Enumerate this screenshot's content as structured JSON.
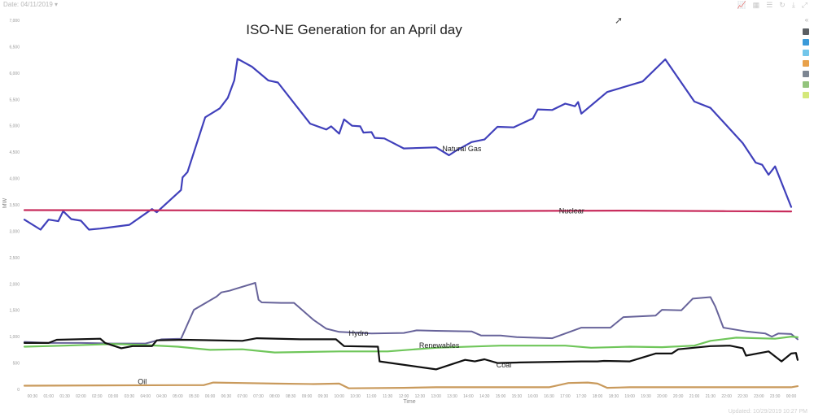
{
  "header": {
    "date_label": "Date: 04/11/2019",
    "toolbar_icons": [
      "line-chart-icon",
      "table-icon",
      "stack-icon",
      "refresh-icon",
      "download-icon",
      "expand-icon"
    ]
  },
  "footer": {
    "updated": "Updated: 10/29/2019 10:27 PM"
  },
  "legend": {
    "collapse_glyph": "«",
    "colors": [
      "#5a5e63",
      "#3a9ad9",
      "#73c6ea",
      "#e8a14a",
      "#7d8692",
      "#93c47d",
      "#d4e87a"
    ]
  },
  "chart_data": {
    "type": "line",
    "title": "ISO-NE Generation for an April day",
    "xlabel": "Time",
    "ylabel": "MW",
    "ylim": [
      0,
      7000
    ],
    "yticks": [
      0,
      500,
      1000,
      1500,
      2000,
      2500,
      3000,
      3500,
      4000,
      4500,
      5000,
      5500,
      6000,
      6500,
      7000
    ],
    "ytick_labels": [
      "0",
      "500",
      "1,000",
      "1,500",
      "2,000",
      "2,500",
      "3,000",
      "3,500",
      "4,000",
      "4,500",
      "5,000",
      "5,500",
      "6,000",
      "6,500",
      "7,000"
    ],
    "xlim": [
      0.25,
      24
    ],
    "xticks": [
      "00:30",
      "01:00",
      "01:30",
      "02:00",
      "02:30",
      "03:00",
      "03:30",
      "04:00",
      "04:30",
      "05:00",
      "05:30",
      "06:00",
      "06:30",
      "07:00",
      "07:30",
      "08:00",
      "08:30",
      "09:00",
      "09:30",
      "10:00",
      "10:30",
      "11:00",
      "11:30",
      "12:00",
      "12:30",
      "13:00",
      "13:30",
      "14:00",
      "14:30",
      "15:00",
      "15:30",
      "16:00",
      "16:30",
      "17:00",
      "17:30",
      "18:00",
      "18:30",
      "19:00",
      "19:30",
      "20:00",
      "20:30",
      "21:00",
      "21:30",
      "22:00",
      "22:30",
      "23:00",
      "23:30",
      "00:00"
    ],
    "series": [
      {
        "name": "Natural Gas",
        "label": "Natural Gas",
        "color": "#4040bb",
        "width": 2.2,
        "label_at": [
          13.8,
          4520
        ],
        "points": [
          [
            0.25,
            3220
          ],
          [
            0.75,
            3030
          ],
          [
            1.0,
            3220
          ],
          [
            1.3,
            3190
          ],
          [
            1.45,
            3380
          ],
          [
            1.7,
            3230
          ],
          [
            2.0,
            3200
          ],
          [
            2.25,
            3030
          ],
          [
            2.6,
            3050
          ],
          [
            3.5,
            3120
          ],
          [
            4.2,
            3420
          ],
          [
            4.35,
            3360
          ],
          [
            5.1,
            3780
          ],
          [
            5.15,
            4020
          ],
          [
            5.3,
            4120
          ],
          [
            5.85,
            5160
          ],
          [
            6.3,
            5330
          ],
          [
            6.55,
            5530
          ],
          [
            6.75,
            5860
          ],
          [
            6.85,
            6270
          ],
          [
            7.3,
            6120
          ],
          [
            7.8,
            5860
          ],
          [
            8.1,
            5820
          ],
          [
            9.1,
            5040
          ],
          [
            9.6,
            4930
          ],
          [
            9.75,
            4990
          ],
          [
            10.0,
            4850
          ],
          [
            10.15,
            5120
          ],
          [
            10.4,
            5000
          ],
          [
            10.65,
            4990
          ],
          [
            10.75,
            4870
          ],
          [
            11.0,
            4880
          ],
          [
            11.1,
            4770
          ],
          [
            11.4,
            4760
          ],
          [
            12.0,
            4570
          ],
          [
            13.0,
            4590
          ],
          [
            13.4,
            4440
          ],
          [
            13.6,
            4520
          ],
          [
            14.1,
            4690
          ],
          [
            14.5,
            4740
          ],
          [
            14.9,
            4980
          ],
          [
            15.4,
            4970
          ],
          [
            16.0,
            5140
          ],
          [
            16.15,
            5310
          ],
          [
            16.6,
            5300
          ],
          [
            17.0,
            5420
          ],
          [
            17.3,
            5370
          ],
          [
            17.4,
            5450
          ],
          [
            17.5,
            5230
          ],
          [
            18.3,
            5640
          ],
          [
            19.4,
            5840
          ],
          [
            20.1,
            6260
          ],
          [
            21.0,
            5460
          ],
          [
            21.5,
            5340
          ],
          [
            22.5,
            4670
          ],
          [
            22.9,
            4300
          ],
          [
            23.1,
            4260
          ],
          [
            23.3,
            4070
          ],
          [
            23.5,
            4230
          ],
          [
            24.0,
            3460
          ]
        ]
      },
      {
        "name": "Nuclear",
        "label": "Nuclear",
        "color": "#c82c5c",
        "width": 2.2,
        "label_at": [
          17.2,
          3340
        ],
        "points": [
          [
            0.25,
            3400
          ],
          [
            6,
            3395
          ],
          [
            13,
            3380
          ],
          [
            19,
            3390
          ],
          [
            22,
            3380
          ],
          [
            24,
            3375
          ]
        ]
      },
      {
        "name": "Hydro",
        "label": "Hydro",
        "color": "#67639a",
        "width": 2.0,
        "label_at": [
          10.6,
          1020
        ],
        "points": [
          [
            0.25,
            900
          ],
          [
            1.0,
            880
          ],
          [
            2.0,
            880
          ],
          [
            3.0,
            870
          ],
          [
            4.0,
            870
          ],
          [
            4.5,
            950
          ],
          [
            5.1,
            960
          ],
          [
            5.5,
            1510
          ],
          [
            6.2,
            1760
          ],
          [
            6.35,
            1840
          ],
          [
            6.6,
            1870
          ],
          [
            6.75,
            1900
          ],
          [
            7.4,
            2020
          ],
          [
            7.5,
            1700
          ],
          [
            7.6,
            1650
          ],
          [
            8.2,
            1640
          ],
          [
            8.6,
            1640
          ],
          [
            9.2,
            1320
          ],
          [
            9.6,
            1150
          ],
          [
            10.0,
            1090
          ],
          [
            11.0,
            1060
          ],
          [
            12.0,
            1070
          ],
          [
            12.4,
            1120
          ],
          [
            13.0,
            1110
          ],
          [
            14.1,
            1100
          ],
          [
            14.4,
            1020
          ],
          [
            15.0,
            1020
          ],
          [
            15.5,
            990
          ],
          [
            16.6,
            970
          ],
          [
            17.5,
            1170
          ],
          [
            18.4,
            1170
          ],
          [
            18.8,
            1370
          ],
          [
            19.8,
            1400
          ],
          [
            20.0,
            1510
          ],
          [
            20.6,
            1500
          ],
          [
            20.95,
            1720
          ],
          [
            21.5,
            1750
          ],
          [
            21.65,
            1570
          ],
          [
            21.9,
            1170
          ],
          [
            22.6,
            1100
          ],
          [
            23.2,
            1060
          ],
          [
            23.4,
            1000
          ],
          [
            23.6,
            1060
          ],
          [
            24.0,
            1050
          ],
          [
            24.2,
            950
          ]
        ]
      },
      {
        "name": "Renewables",
        "label": "Renewables",
        "color": "#6fc65a",
        "width": 2.2,
        "label_at": [
          13.1,
          790
        ],
        "points": [
          [
            0.25,
            810
          ],
          [
            1.5,
            830
          ],
          [
            3.0,
            860
          ],
          [
            4.0,
            840
          ],
          [
            5.0,
            810
          ],
          [
            6.0,
            750
          ],
          [
            7.0,
            760
          ],
          [
            8.0,
            700
          ],
          [
            10.0,
            720
          ],
          [
            11.5,
            720
          ],
          [
            13.0,
            790
          ],
          [
            15.0,
            830
          ],
          [
            17.0,
            830
          ],
          [
            17.8,
            790
          ],
          [
            19.0,
            810
          ],
          [
            20.0,
            800
          ],
          [
            21.0,
            830
          ],
          [
            21.5,
            920
          ],
          [
            22.3,
            980
          ],
          [
            23.5,
            960
          ],
          [
            24.0,
            1000
          ],
          [
            24.2,
            990
          ]
        ]
      },
      {
        "name": "Coal",
        "label": "Coal",
        "color": "#111111",
        "width": 2.2,
        "label_at": [
          15.1,
          420
        ],
        "points": [
          [
            0.25,
            880
          ],
          [
            1.0,
            880
          ],
          [
            1.25,
            940
          ],
          [
            2.6,
            960
          ],
          [
            2.75,
            880
          ],
          [
            3.25,
            780
          ],
          [
            3.6,
            820
          ],
          [
            4.2,
            820
          ],
          [
            4.35,
            930
          ],
          [
            5.2,
            940
          ],
          [
            7.0,
            920
          ],
          [
            7.45,
            970
          ],
          [
            8.8,
            950
          ],
          [
            9.9,
            950
          ],
          [
            10.15,
            820
          ],
          [
            11.2,
            810
          ],
          [
            11.25,
            530
          ],
          [
            13.0,
            380
          ],
          [
            13.9,
            560
          ],
          [
            14.2,
            530
          ],
          [
            14.5,
            570
          ],
          [
            14.9,
            500
          ],
          [
            15.6,
            510
          ],
          [
            17.5,
            530
          ],
          [
            18.0,
            530
          ],
          [
            18.2,
            540
          ],
          [
            19.0,
            530
          ],
          [
            19.8,
            680
          ],
          [
            20.3,
            680
          ],
          [
            20.5,
            760
          ],
          [
            21.5,
            820
          ],
          [
            22.1,
            830
          ],
          [
            22.5,
            780
          ],
          [
            22.6,
            640
          ],
          [
            23.3,
            720
          ],
          [
            23.7,
            530
          ],
          [
            24.0,
            680
          ],
          [
            24.15,
            690
          ],
          [
            24.2,
            560
          ]
        ]
      },
      {
        "name": "Oil",
        "label": "Oil",
        "color": "#c99a5c",
        "width": 2.2,
        "label_at": [
          3.9,
          100
        ],
        "points": [
          [
            0.25,
            70
          ],
          [
            5.0,
            80
          ],
          [
            5.8,
            80
          ],
          [
            6.1,
            130
          ],
          [
            7.0,
            120
          ],
          [
            8.0,
            110
          ],
          [
            9.2,
            100
          ],
          [
            10.0,
            110
          ],
          [
            10.3,
            20
          ],
          [
            12.0,
            30
          ],
          [
            13.0,
            40
          ],
          [
            14.0,
            40
          ],
          [
            16.5,
            40
          ],
          [
            17.1,
            120
          ],
          [
            17.7,
            130
          ],
          [
            18.0,
            110
          ],
          [
            18.3,
            30
          ],
          [
            19.0,
            40
          ],
          [
            21.0,
            40
          ],
          [
            23.0,
            40
          ],
          [
            24.0,
            40
          ],
          [
            24.2,
            60
          ]
        ]
      }
    ]
  }
}
